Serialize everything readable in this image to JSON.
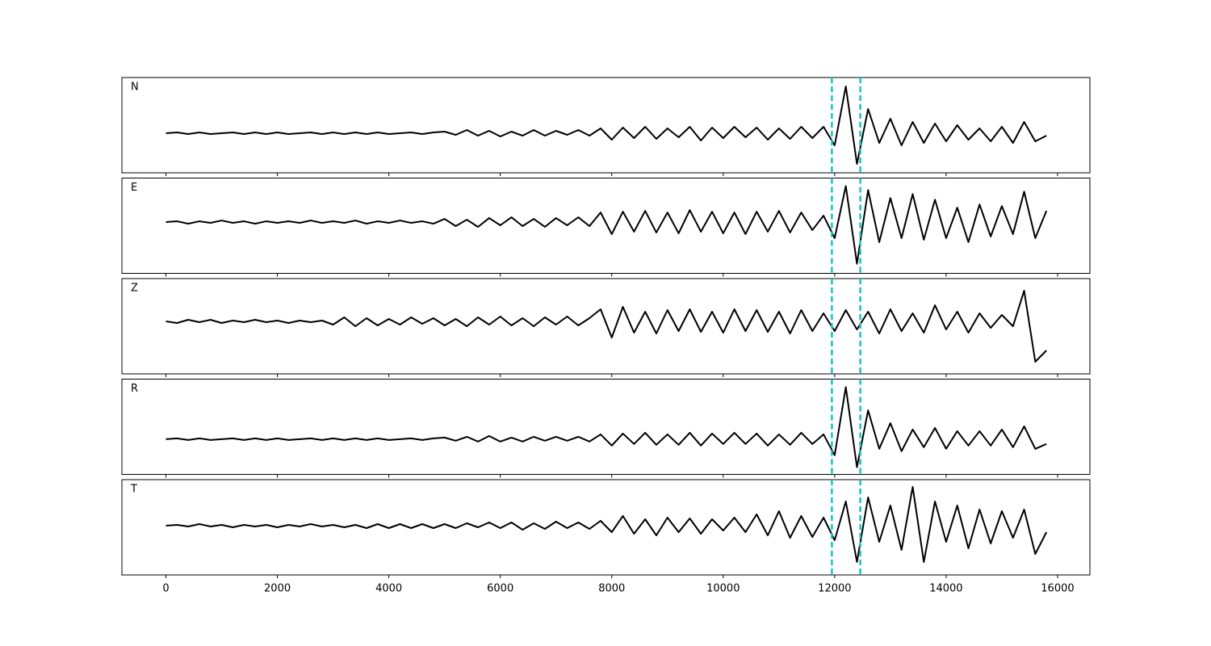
{
  "chart_data": {
    "type": "line",
    "layout": "stacked",
    "xlim": [
      -790,
      16580
    ],
    "xticks": [
      0,
      2000,
      4000,
      6000,
      8000,
      10000,
      12000,
      14000,
      16000
    ],
    "markers": [
      {
        "value": 11950,
        "color": "#17c3c3",
        "style": "dashed"
      },
      {
        "value": 12460,
        "color": "#17c3c3",
        "style": "dashed"
      }
    ],
    "x": [
      0,
      200,
      400,
      600,
      800,
      1000,
      1200,
      1400,
      1600,
      1800,
      2000,
      2200,
      2400,
      2600,
      2800,
      3000,
      3200,
      3400,
      3600,
      3800,
      4000,
      4200,
      4400,
      4600,
      4800,
      5000,
      5200,
      5400,
      5600,
      5800,
      6000,
      6200,
      6400,
      6600,
      6800,
      7000,
      7200,
      7400,
      7600,
      7800,
      8000,
      8200,
      8400,
      8600,
      8800,
      9000,
      9200,
      9400,
      9600,
      9800,
      10000,
      10200,
      10400,
      10600,
      10800,
      11000,
      11200,
      11400,
      11600,
      11800,
      12000,
      12200,
      12400,
      12600,
      12800,
      13000,
      13200,
      13400,
      13600,
      13800,
      14000,
      14200,
      14400,
      14600,
      14800,
      15000,
      15200,
      15400,
      15600,
      15800
    ],
    "series": [
      {
        "name": "N",
        "color": "#000000",
        "ylim": [
          -49,
          69
        ],
        "values": [
          0,
          1,
          -1,
          1,
          -1,
          0,
          1,
          -1,
          1,
          -1,
          1,
          -1,
          0,
          1,
          -1,
          1,
          -1,
          1,
          -1,
          1,
          -1,
          0,
          1,
          -1,
          1,
          2,
          -2,
          4,
          -3,
          3,
          -4,
          2,
          -3,
          4,
          -3,
          3,
          -2,
          4,
          -3,
          6,
          -8,
          7,
          -6,
          8,
          -7,
          6,
          -5,
          8,
          -9,
          7,
          -6,
          8,
          -5,
          7,
          -8,
          6,
          -7,
          8,
          -6,
          8,
          -15,
          58,
          -38,
          30,
          -12,
          18,
          -15,
          14,
          -12,
          12,
          -10,
          10,
          -8,
          6,
          -10,
          8,
          -12,
          14,
          -10,
          -3
        ]
      },
      {
        "name": "E",
        "color": "#000000",
        "ylim": [
          -64,
          55
        ],
        "values": [
          0,
          1,
          -2,
          1,
          -1,
          2,
          -1,
          1,
          -2,
          1,
          -1,
          1,
          -1,
          2,
          -1,
          1,
          -1,
          2,
          -2,
          1,
          -1,
          2,
          -1,
          1,
          -2,
          4,
          -5,
          3,
          -6,
          5,
          -4,
          6,
          -5,
          4,
          -6,
          5,
          -4,
          6,
          -5,
          12,
          -15,
          13,
          -12,
          14,
          -13,
          12,
          -14,
          15,
          -12,
          13,
          -14,
          12,
          -15,
          13,
          -12,
          14,
          -13,
          12,
          -10,
          8,
          -20,
          45,
          -52,
          40,
          -25,
          30,
          -20,
          35,
          -22,
          28,
          -20,
          18,
          -25,
          22,
          -18,
          20,
          -15,
          38,
          -20,
          14
        ]
      },
      {
        "name": "Z",
        "color": "#000000",
        "ylim": [
          -65,
          53
        ],
        "values": [
          0,
          -2,
          2,
          -1,
          2,
          -2,
          1,
          -1,
          2,
          -1,
          1,
          -2,
          1,
          -1,
          1,
          -4,
          5,
          -6,
          4,
          -5,
          3,
          -4,
          5,
          -3,
          4,
          -5,
          3,
          -6,
          5,
          -4,
          6,
          -5,
          4,
          -6,
          5,
          -4,
          6,
          -5,
          4,
          15,
          -20,
          18,
          -14,
          12,
          -15,
          14,
          -12,
          15,
          -13,
          12,
          -14,
          15,
          -12,
          14,
          -13,
          12,
          -15,
          14,
          -12,
          10,
          -12,
          14,
          -10,
          12,
          -15,
          15,
          -12,
          10,
          -14,
          20,
          -10,
          12,
          -14,
          10,
          -8,
          8,
          -6,
          38,
          -50,
          -36
        ]
      },
      {
        "name": "R",
        "color": "#000000",
        "ylim": [
          -44,
          75
        ],
        "values": [
          0,
          1,
          -1,
          1,
          -1,
          0,
          1,
          -1,
          1,
          -1,
          1,
          -1,
          0,
          1,
          -1,
          1,
          -1,
          1,
          -1,
          1,
          -1,
          0,
          1,
          -1,
          1,
          2,
          -2,
          3,
          -3,
          4,
          -3,
          2,
          -3,
          3,
          -2,
          3,
          -2,
          3,
          -3,
          6,
          -8,
          7,
          -6,
          8,
          -7,
          6,
          -7,
          8,
          -8,
          7,
          -6,
          8,
          -6,
          7,
          -8,
          6,
          -7,
          8,
          -6,
          6,
          -20,
          65,
          -35,
          36,
          -12,
          20,
          -15,
          12,
          -10,
          14,
          -12,
          10,
          -8,
          10,
          -8,
          12,
          -10,
          16,
          -12,
          -6
        ]
      },
      {
        "name": "T",
        "color": "#000000",
        "ylim": [
          -61,
          57
        ],
        "values": [
          0,
          1,
          -1,
          2,
          -1,
          1,
          -2,
          1,
          -1,
          1,
          -2,
          1,
          -1,
          2,
          -1,
          1,
          -2,
          1,
          -3,
          2,
          -3,
          2,
          -3,
          2,
          -3,
          2,
          -3,
          3,
          -2,
          4,
          -3,
          4,
          -5,
          3,
          -4,
          5,
          -3,
          4,
          -4,
          6,
          -8,
          12,
          -10,
          8,
          -12,
          10,
          -8,
          9,
          -10,
          8,
          -6,
          10,
          -8,
          14,
          -12,
          18,
          -15,
          12,
          -14,
          10,
          -18,
          30,
          -45,
          35,
          -20,
          25,
          -30,
          48,
          -45,
          30,
          -20,
          25,
          -28,
          20,
          -22,
          18,
          -15,
          20,
          -35,
          -8
        ]
      }
    ]
  }
}
